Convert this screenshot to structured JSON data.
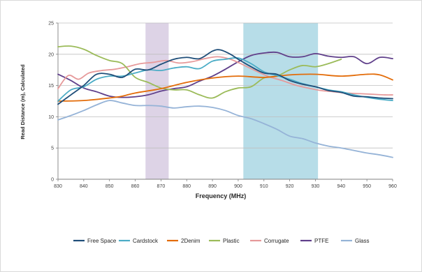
{
  "chart_data": {
    "type": "line",
    "xlabel": "Frequency (MHz)",
    "ylabel": "Read Distance (m), Calculated",
    "xlim": [
      830,
      960
    ],
    "ylim": [
      0,
      25
    ],
    "xticks": [
      830,
      840,
      850,
      860,
      870,
      880,
      890,
      900,
      910,
      920,
      930,
      940,
      950,
      960
    ],
    "yticks": [
      0,
      5,
      10,
      15,
      20,
      25
    ],
    "grid": "horizontal",
    "legend": "bottom",
    "bands": [
      {
        "x0": 864,
        "x1": 873,
        "color": "#ddd3e6"
      },
      {
        "x0": 902,
        "x1": 931,
        "color": "#b7dde8"
      }
    ],
    "series": [
      {
        "name": "Free Space",
        "color": "#1f4e79",
        "x": [
          830,
          835,
          840,
          845,
          850,
          855,
          860,
          865,
          870,
          875,
          880,
          885,
          890,
          893,
          897,
          900,
          905,
          910,
          915,
          920,
          925,
          930,
          935,
          940,
          945,
          950,
          955,
          960
        ],
        "y": [
          12.0,
          13.5,
          15.0,
          16.8,
          16.8,
          16.3,
          17.6,
          17.5,
          18.4,
          19.2,
          19.5,
          19.3,
          20.5,
          20.7,
          20.0,
          19.2,
          18.0,
          17.0,
          16.8,
          15.8,
          15.2,
          14.8,
          14.2,
          13.9,
          13.3,
          13.2,
          13.0,
          12.9
        ]
      },
      {
        "name": "Cardstock",
        "color": "#4bacc6",
        "x": [
          830,
          835,
          840,
          845,
          850,
          855,
          860,
          865,
          870,
          875,
          880,
          885,
          890,
          895,
          900,
          905,
          910,
          915,
          920,
          925,
          930,
          935,
          940,
          945,
          950,
          955,
          960
        ],
        "y": [
          12.5,
          14.3,
          14.8,
          16.0,
          16.5,
          16.5,
          17.0,
          17.5,
          17.4,
          17.8,
          18.0,
          17.7,
          18.9,
          19.2,
          19.4,
          18.5,
          17.2,
          16.6,
          16.0,
          15.3,
          14.8,
          14.3,
          14.0,
          13.5,
          13.1,
          12.8,
          12.6
        ]
      },
      {
        "name": "2Denim",
        "color": "#e36c09",
        "x": [
          830,
          840,
          850,
          855,
          860,
          870,
          880,
          890,
          900,
          910,
          920,
          930,
          940,
          950,
          955,
          960
        ],
        "y": [
          12.5,
          12.6,
          13.0,
          13.3,
          13.8,
          14.5,
          15.5,
          16.2,
          16.5,
          16.3,
          16.7,
          16.8,
          16.5,
          16.8,
          16.7,
          15.9
        ]
      },
      {
        "name": "Plastic",
        "color": "#9bbb59",
        "x": [
          830,
          835,
          840,
          845,
          850,
          855,
          860,
          865,
          870,
          875,
          880,
          885,
          890,
          895,
          900,
          905,
          910,
          915,
          920,
          925,
          930,
          935,
          940
        ],
        "y": [
          21.2,
          21.3,
          20.8,
          19.8,
          19.0,
          18.5,
          16.3,
          15.5,
          14.6,
          14.3,
          14.3,
          13.5,
          13.0,
          14.0,
          14.6,
          14.8,
          16.2,
          16.5,
          17.5,
          18.2,
          18.0,
          18.5,
          19.2
        ]
      },
      {
        "name": "Corrugate",
        "color": "#e6999a",
        "x": [
          830,
          834,
          838,
          842,
          847,
          852,
          857,
          862,
          867,
          872,
          877,
          882,
          887,
          892,
          897,
          902,
          907,
          912,
          917,
          922,
          927,
          932,
          937,
          942,
          947,
          952,
          957,
          960
        ],
        "y": [
          14.5,
          16.6,
          16.0,
          17.0,
          17.4,
          17.6,
          18.0,
          18.5,
          18.7,
          19.0,
          18.6,
          18.8,
          19.3,
          19.6,
          19.2,
          18.3,
          17.3,
          16.4,
          15.8,
          15.1,
          14.6,
          14.2,
          14.0,
          13.8,
          13.7,
          13.6,
          13.5,
          13.5
        ]
      },
      {
        "name": "PTFE",
        "color": "#5f3f8a",
        "x": [
          830,
          835,
          840,
          845,
          850,
          855,
          860,
          865,
          870,
          875,
          880,
          885,
          890,
          895,
          900,
          905,
          910,
          915,
          920,
          925,
          930,
          935,
          940,
          945,
          950,
          955,
          960
        ],
        "y": [
          16.8,
          15.8,
          14.6,
          14.0,
          13.3,
          13.1,
          13.2,
          13.5,
          14.1,
          14.5,
          14.8,
          15.7,
          16.5,
          17.6,
          18.8,
          19.8,
          20.2,
          20.3,
          19.6,
          19.6,
          20.1,
          19.7,
          19.5,
          19.6,
          18.5,
          19.5,
          19.3
        ]
      },
      {
        "name": "Glass",
        "color": "#95b3d7",
        "x": [
          830,
          835,
          840,
          845,
          850,
          855,
          860,
          865,
          870,
          875,
          880,
          885,
          890,
          895,
          900,
          905,
          910,
          915,
          920,
          925,
          930,
          935,
          940,
          945,
          950,
          955,
          960
        ],
        "y": [
          9.5,
          10.2,
          11.0,
          11.9,
          12.6,
          12.2,
          11.8,
          11.8,
          11.7,
          11.4,
          11.6,
          11.7,
          11.5,
          11.0,
          10.2,
          9.7,
          8.9,
          8.0,
          6.9,
          6.5,
          5.8,
          5.3,
          5.0,
          4.6,
          4.2,
          3.9,
          3.5
        ]
      }
    ]
  }
}
